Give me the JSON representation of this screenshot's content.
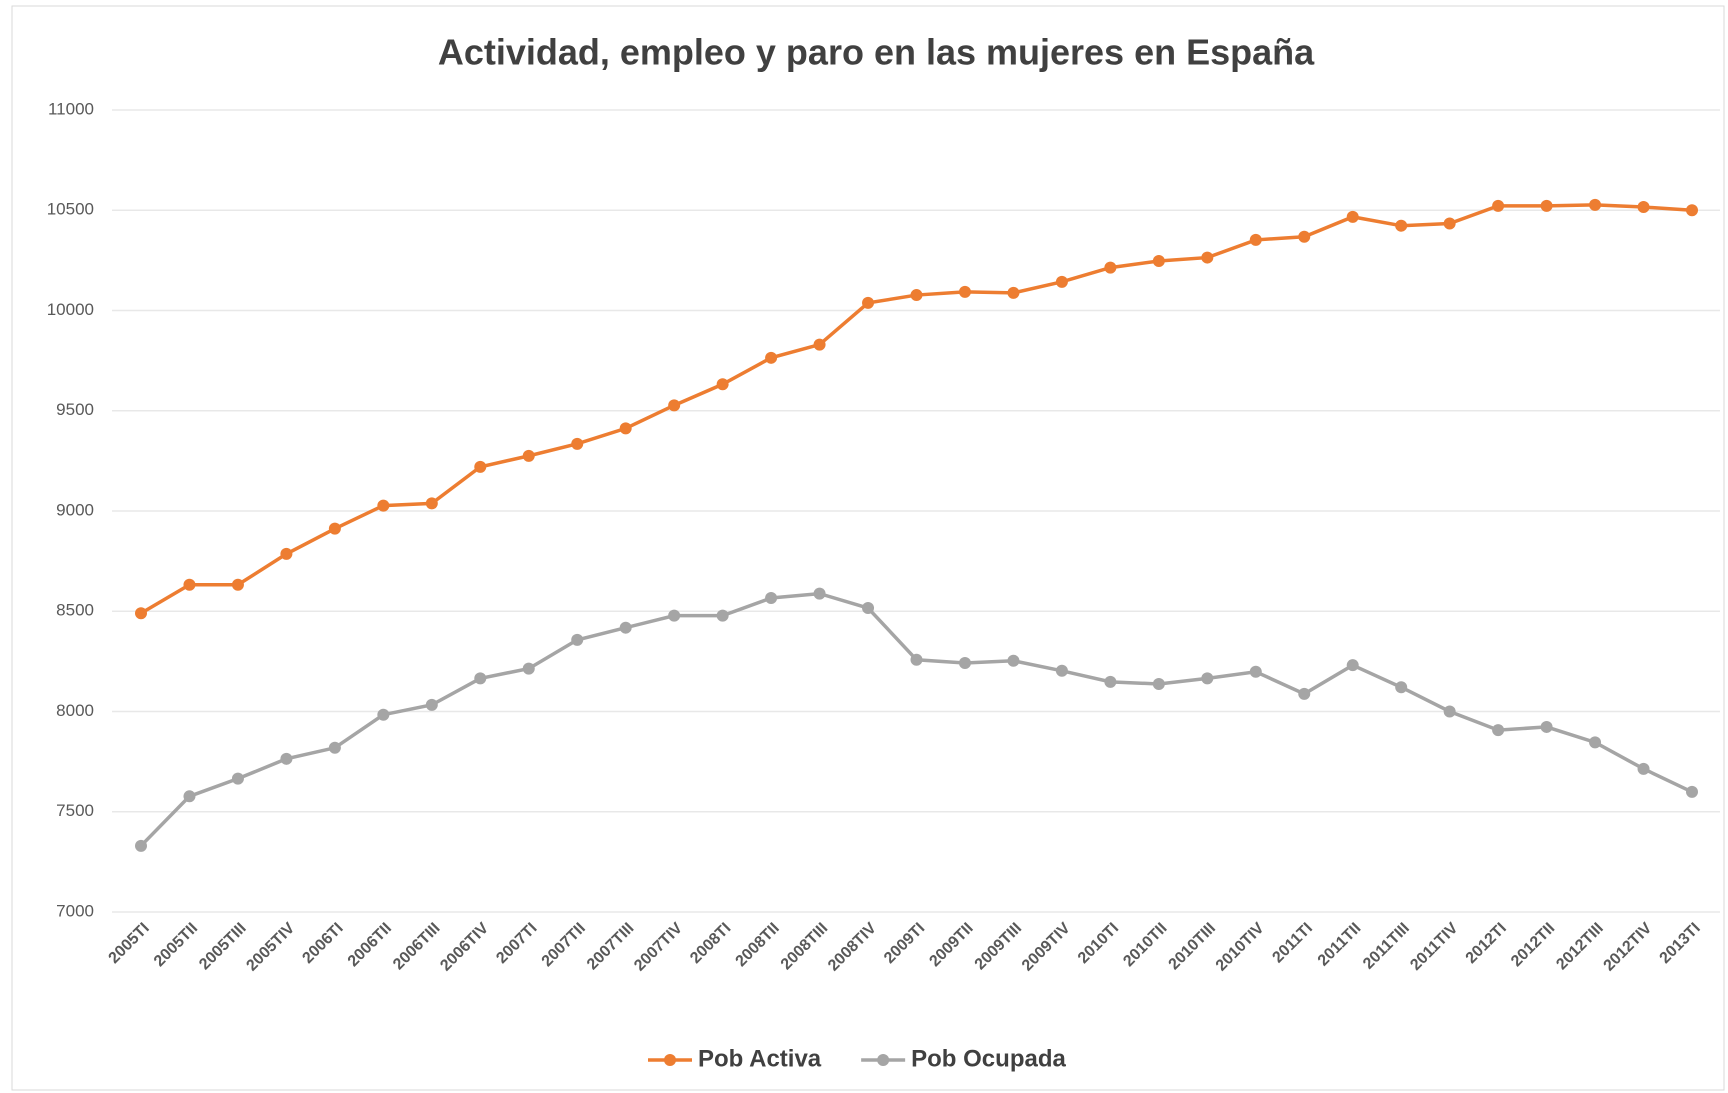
{
  "chart_data": {
    "type": "line",
    "title": "Actividad, empleo y paro en las mujeres en España",
    "categories": [
      "2005TI",
      "2005TII",
      "2005TIII",
      "2005TIV",
      "2006TI",
      "2006TII",
      "2006TIII",
      "2006TIV",
      "2007TI",
      "2007TII",
      "2007TIII",
      "2007TIV",
      "2008TI",
      "2008TII",
      "2008TIII",
      "2008TIV",
      "2009TI",
      "2009TII",
      "2009TIII",
      "2009TIV",
      "2010TI",
      "2010TII",
      "2010TIII",
      "2010TIV",
      "2011TI",
      "2011TII",
      "2011TIII",
      "2011TIV",
      "2012TI",
      "2012TII",
      "2012TIII",
      "2012TIV",
      "2013TI"
    ],
    "series": [
      {
        "name": "Pob Activa",
        "color": "#ed7d31",
        "values": [
          8490,
          8632,
          8632,
          8786,
          8912,
          9027,
          9038,
          9220,
          9275,
          9335,
          9412,
          9527,
          9632,
          9764,
          9830,
          10038,
          10077,
          10093,
          10088,
          10143,
          10214,
          10247,
          10264,
          10352,
          10368,
          10467,
          10423,
          10434,
          10522,
          10522,
          10527,
          10516,
          10500
        ]
      },
      {
        "name": "Pob Ocupada",
        "color": "#a5a5a5",
        "values": [
          7330,
          7577,
          7665,
          7764,
          7819,
          7984,
          8033,
          8165,
          8214,
          8357,
          8418,
          8478,
          8478,
          8566,
          8588,
          8516,
          8258,
          8242,
          8253,
          8203,
          8148,
          8137,
          8165,
          8198,
          8088,
          8231,
          8121,
          8000,
          7907,
          7923,
          7846,
          7714,
          7599
        ]
      }
    ],
    "ylim": [
      7000,
      11000
    ],
    "yticks": [
      7000,
      7500,
      8000,
      8500,
      9000,
      9500,
      10000,
      10500,
      11000
    ],
    "grid": true,
    "legend": "bottom"
  }
}
